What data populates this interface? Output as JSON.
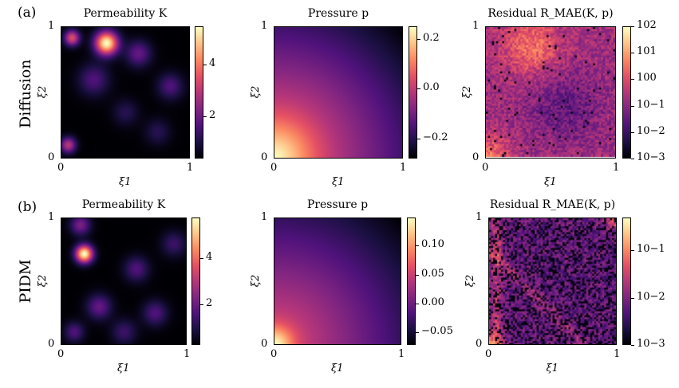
{
  "row_labels": [
    {
      "tag": "(a)",
      "name": "Diffusion"
    },
    {
      "tag": "(b)",
      "name": "PIDM"
    }
  ],
  "colormap": "magma",
  "chart_data": [
    {
      "type": "heatmap",
      "row": 0,
      "title": "Permeability K",
      "xlabel": "ξ1",
      "ylabel": "ξ2",
      "xticks": [
        "0",
        "1"
      ],
      "yticks": [
        "0",
        "1"
      ],
      "clim": [
        0.35,
        5.5
      ],
      "scale": "linear",
      "cbar_ticks": [
        2,
        4
      ],
      "cbar_labels": [
        "2",
        "4"
      ],
      "field": "perm_a"
    },
    {
      "type": "heatmap",
      "row": 0,
      "title": "Pressure p",
      "xlabel": "ξ1",
      "ylabel": "ξ2",
      "xticks": [
        "0",
        "1"
      ],
      "yticks": [
        "0",
        "1"
      ],
      "clim": [
        -0.28,
        0.25
      ],
      "scale": "linear",
      "cbar_ticks": [
        -0.2,
        0.0,
        0.2
      ],
      "cbar_labels": [
        "−0.2",
        "0.0",
        "0.2"
      ],
      "field": "press_a"
    },
    {
      "type": "heatmap",
      "row": 0,
      "title": "Residual R_MAE(K, p)",
      "xlabel": "ξ1",
      "ylabel": "ξ2",
      "xticks": [
        "0",
        "1"
      ],
      "yticks": [
        "0",
        "1"
      ],
      "clim": [
        0.001,
        100
      ],
      "scale": "log",
      "cbar_ticks": [
        -3,
        -2,
        -1,
        0,
        1,
        2
      ],
      "cbar_labels": [
        "10−3",
        "10−2",
        "10−1",
        "100",
        "101",
        "102"
      ],
      "field": "res_a"
    },
    {
      "type": "heatmap",
      "row": 1,
      "title": "Permeability K",
      "xlabel": "ξ1",
      "ylabel": "ξ2",
      "xticks": [
        "0",
        "1"
      ],
      "yticks": [
        "0",
        "1"
      ],
      "clim": [
        0.2,
        5.8
      ],
      "scale": "linear",
      "cbar_ticks": [
        2,
        4
      ],
      "cbar_labels": [
        "2",
        "4"
      ],
      "field": "perm_b"
    },
    {
      "type": "heatmap",
      "row": 1,
      "title": "Pressure p",
      "xlabel": "ξ1",
      "ylabel": "ξ2",
      "xticks": [
        "0",
        "1"
      ],
      "yticks": [
        "0",
        "1"
      ],
      "clim": [
        -0.072,
        0.149
      ],
      "scale": "linear",
      "cbar_ticks": [
        -0.05,
        0.0,
        0.05,
        0.1
      ],
      "cbar_labels": [
        "−0.05",
        "0.00",
        "0.05",
        "0.10"
      ],
      "field": "press_b"
    },
    {
      "type": "heatmap",
      "row": 1,
      "title": "Residual R_MAE(K, p)",
      "xlabel": "ξ1",
      "ylabel": "ξ2",
      "xticks": [
        "0",
        "1"
      ],
      "yticks": [
        "0",
        "1"
      ],
      "clim": [
        0.001,
        0.5
      ],
      "scale": "log",
      "cbar_ticks": [
        -3,
        -2,
        -1
      ],
      "cbar_labels": [
        "10−3",
        "10−2",
        "10−1"
      ],
      "field": "res_b"
    }
  ]
}
